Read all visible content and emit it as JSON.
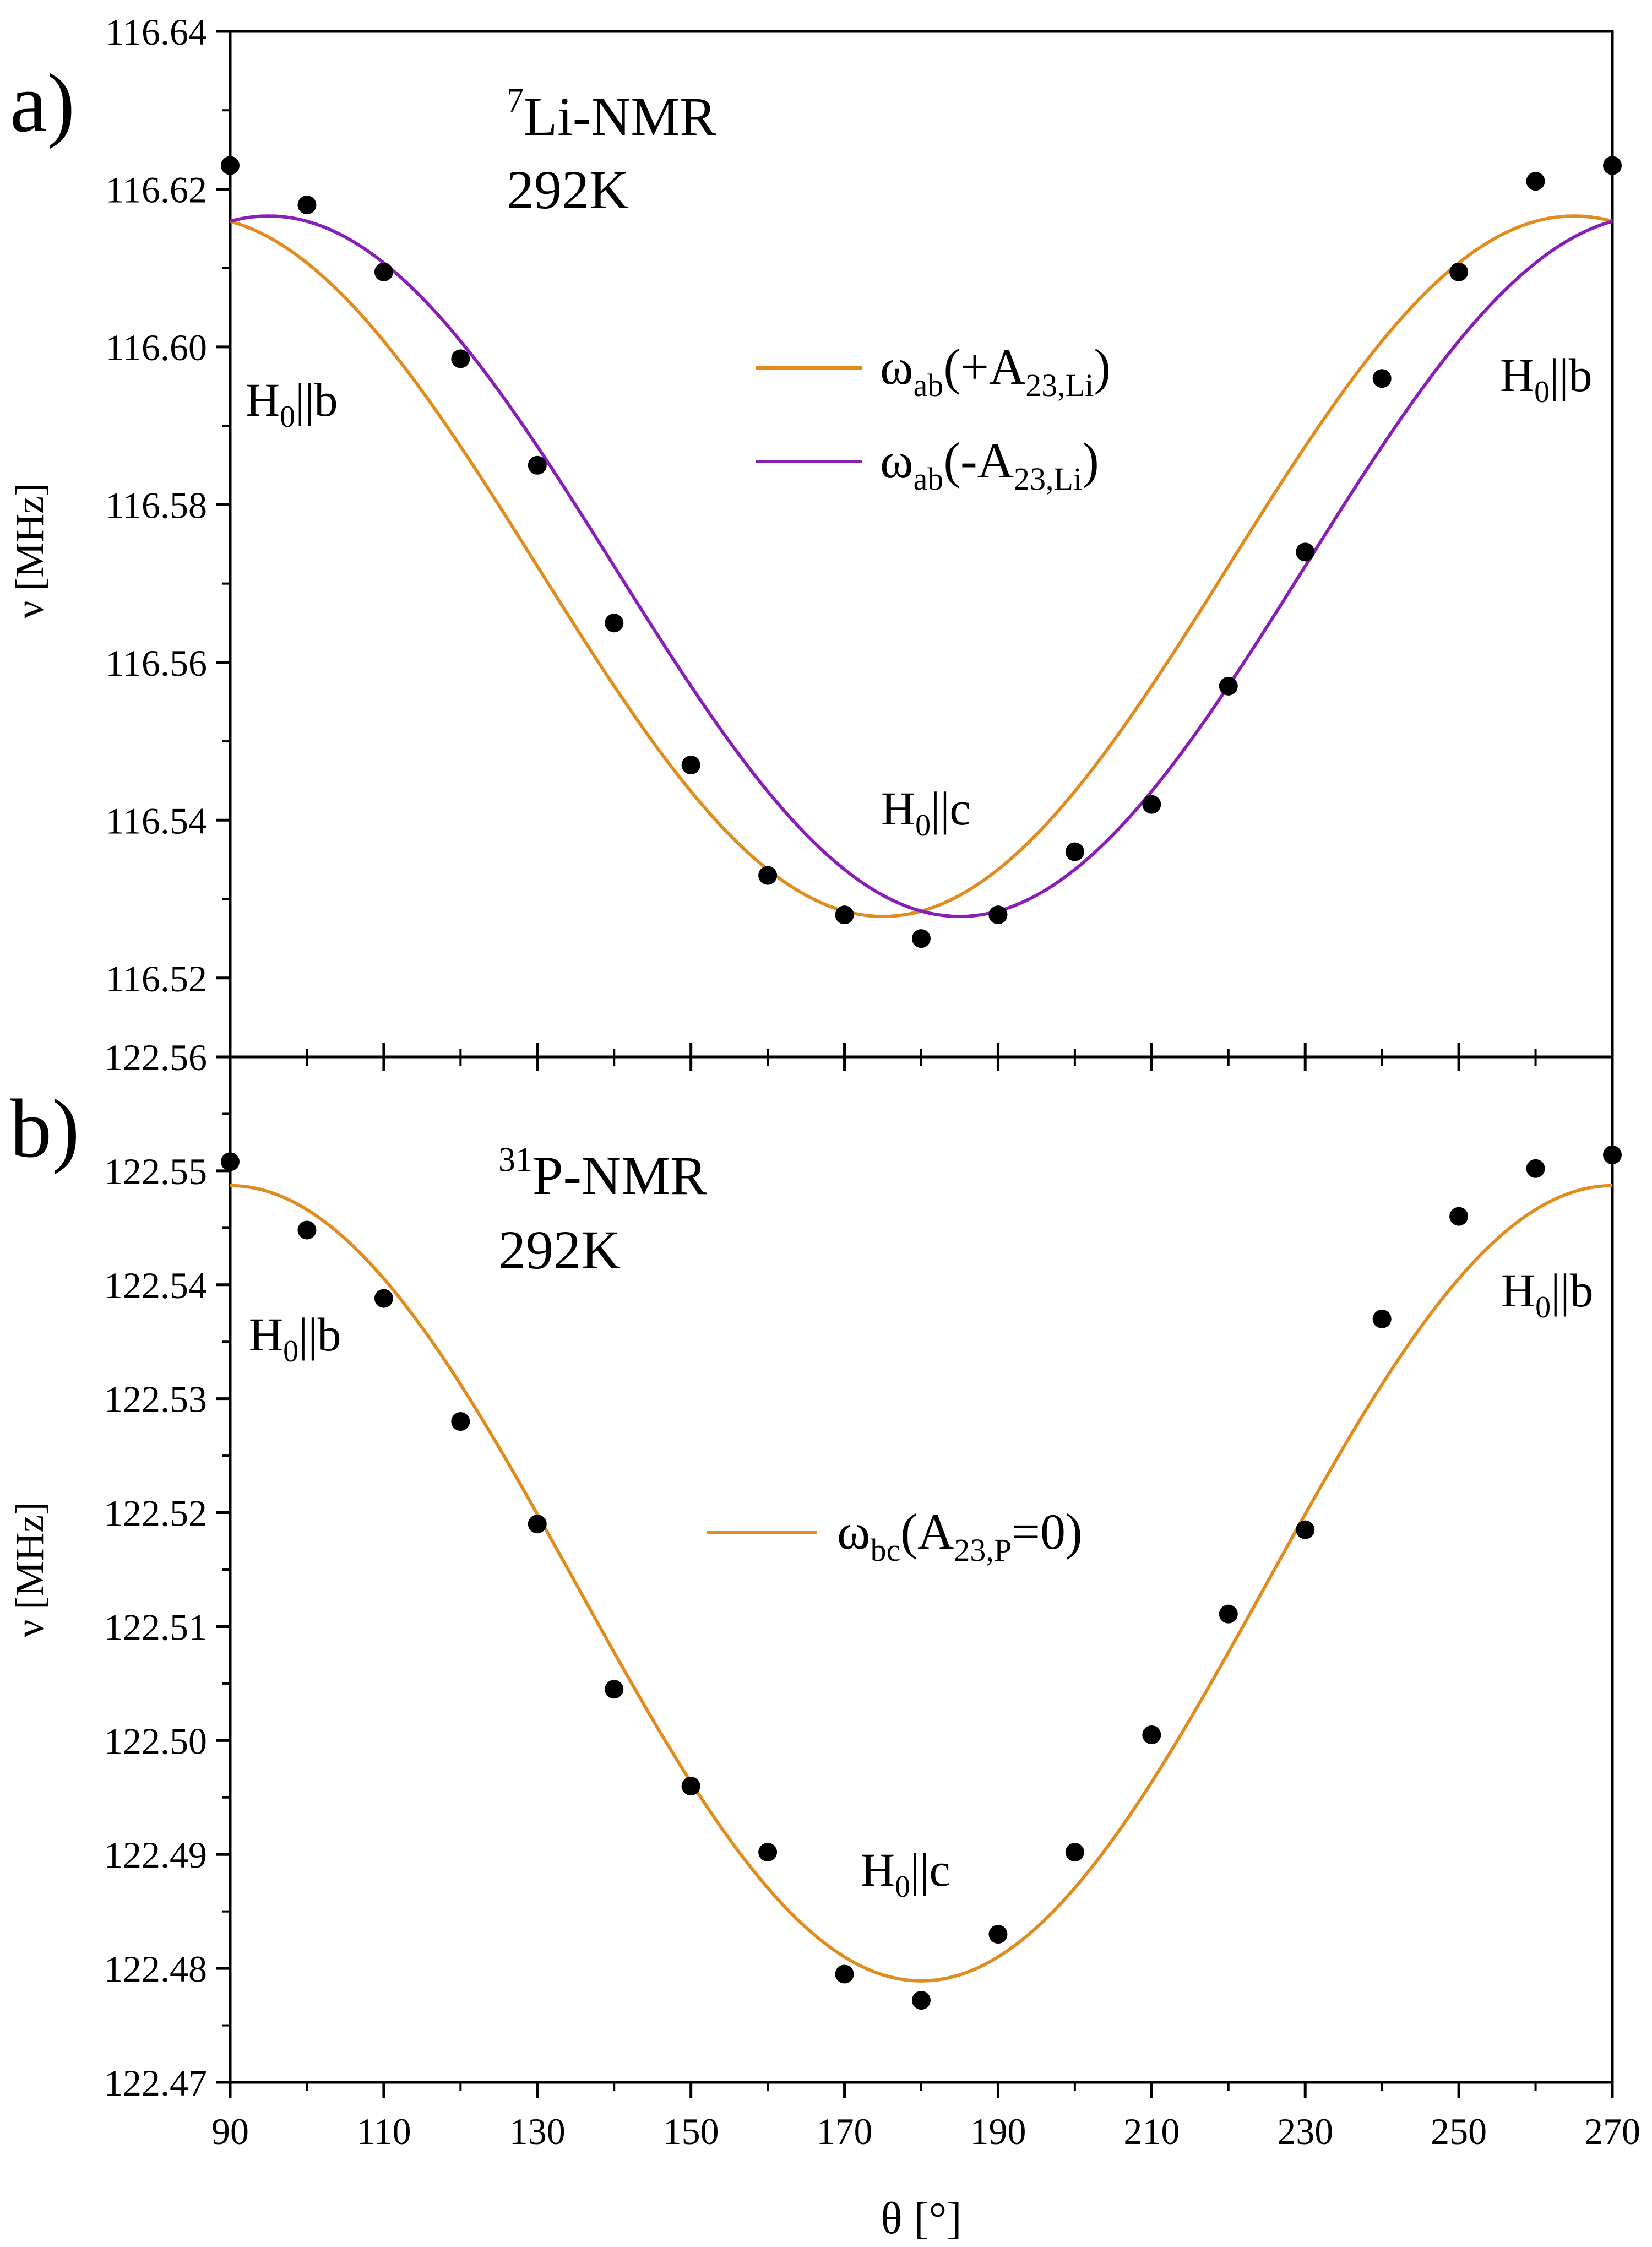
{
  "x_axis": {
    "label": "θ [°]",
    "range": [
      90,
      270
    ],
    "ticks": [
      90,
      110,
      130,
      150,
      170,
      190,
      210,
      230,
      250,
      270
    ],
    "tick_labels": [
      "90",
      "110",
      "130",
      "150",
      "170",
      "190",
      "210",
      "230",
      "250",
      "270"
    ]
  },
  "chart_data": [
    {
      "type": "scatter",
      "panel_letter": "a)",
      "nucleus_mass": "7",
      "nucleus_name": "Li-NMR",
      "temperature": "292K",
      "ylabel": "ν [MHz]",
      "xlim": [
        90,
        270
      ],
      "ylim": [
        116.51,
        116.64
      ],
      "y_ticks": [
        116.52,
        116.54,
        116.56,
        116.58,
        116.6,
        116.62,
        116.64
      ],
      "y_tick_labels": [
        "116.52",
        "116.54",
        "116.56",
        "116.58",
        "116.60",
        "116.62",
        "116.64"
      ],
      "points": {
        "x": [
          90,
          100,
          110,
          120,
          130,
          140,
          150,
          160,
          170,
          180,
          190,
          200,
          210,
          220,
          230,
          240,
          250,
          260,
          270
        ],
        "y": [
          116.623,
          116.618,
          116.6095,
          116.5985,
          116.585,
          116.565,
          116.547,
          116.533,
          116.528,
          116.525,
          116.528,
          116.536,
          116.542,
          116.557,
          116.574,
          116.596,
          116.6095,
          116.621,
          116.623
        ]
      },
      "series": [
        {
          "name": "ωab(+A23,Li)",
          "color": "#E08C1E",
          "legend_symbol": "ω",
          "legend_sub1": "ab",
          "legend_arg_pre": "(+A",
          "legend_sub2": "23,Li",
          "legend_arg_post": ")",
          "model": {
            "mean": 116.5722,
            "amplitude": 0.0444,
            "center_deg": 175
          }
        },
        {
          "name": "ωab(-A23,Li)",
          "color": "#8A1FB8",
          "legend_symbol": "ω",
          "legend_sub1": "ab",
          "legend_arg_pre": "(-A",
          "legend_sub2": "23,Li",
          "legend_arg_post": ")",
          "model": {
            "mean": 116.5722,
            "amplitude": 0.0444,
            "center_deg": 185
          }
        }
      ],
      "annotations": {
        "left": {
          "main": "H",
          "sub": "0",
          "rest": "||b"
        },
        "right": {
          "main": "H",
          "sub": "0",
          "rest": "||b"
        },
        "center": {
          "main": "H",
          "sub": "0",
          "rest": "||c"
        }
      }
    },
    {
      "type": "scatter",
      "panel_letter": "b)",
      "nucleus_mass": "31",
      "nucleus_name": "P-NMR",
      "temperature": "292K",
      "ylabel": "ν [MHz]",
      "xlim": [
        90,
        270
      ],
      "ylim": [
        122.47,
        122.56
      ],
      "y_ticks": [
        122.47,
        122.48,
        122.49,
        122.5,
        122.51,
        122.52,
        122.53,
        122.54,
        122.55,
        122.56
      ],
      "y_tick_labels": [
        "122.47",
        "122.48",
        "122.49",
        "122.50",
        "122.51",
        "122.52",
        "122.53",
        "122.54",
        "122.55",
        "122.56"
      ],
      "points": {
        "x": [
          90,
          100,
          110,
          120,
          130,
          140,
          150,
          160,
          170,
          180,
          190,
          200,
          210,
          220,
          230,
          240,
          250,
          260,
          270
        ],
        "y": [
          122.5508,
          122.5448,
          122.5388,
          122.528,
          122.519,
          122.5045,
          122.496,
          122.4902,
          122.4795,
          122.4772,
          122.483,
          122.4902,
          122.5005,
          122.5111,
          122.5185,
          122.537,
          122.546,
          122.5502,
          122.5514
        ]
      },
      "series": [
        {
          "name": "ωbc(A23,P=0)",
          "color": "#E08C1E",
          "legend_symbol": "ω",
          "legend_sub1": "bc",
          "legend_arg_pre": "(A",
          "legend_sub2": "23,P",
          "legend_arg_post": "=0)",
          "model": {
            "mean": 122.5138,
            "amplitude": 0.0349,
            "center_deg": 180
          }
        }
      ],
      "annotations": {
        "left": {
          "main": "H",
          "sub": "0",
          "rest": "||b"
        },
        "right": {
          "main": "H",
          "sub": "0",
          "rest": "||b"
        },
        "center": {
          "main": "H",
          "sub": "0",
          "rest": "||c"
        }
      }
    }
  ]
}
